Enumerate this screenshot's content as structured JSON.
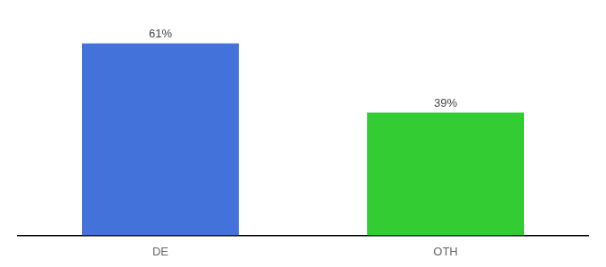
{
  "chart_data": {
    "type": "bar",
    "categories": [
      "DE",
      "OTH"
    ],
    "values": [
      61,
      39
    ],
    "value_labels": [
      "61%",
      "39%"
    ],
    "colors": [
      "#4472db",
      "#33cc33"
    ],
    "ylim": [
      0,
      72
    ],
    "grid": false,
    "data_labels": true,
    "tick_labels": "x"
  }
}
